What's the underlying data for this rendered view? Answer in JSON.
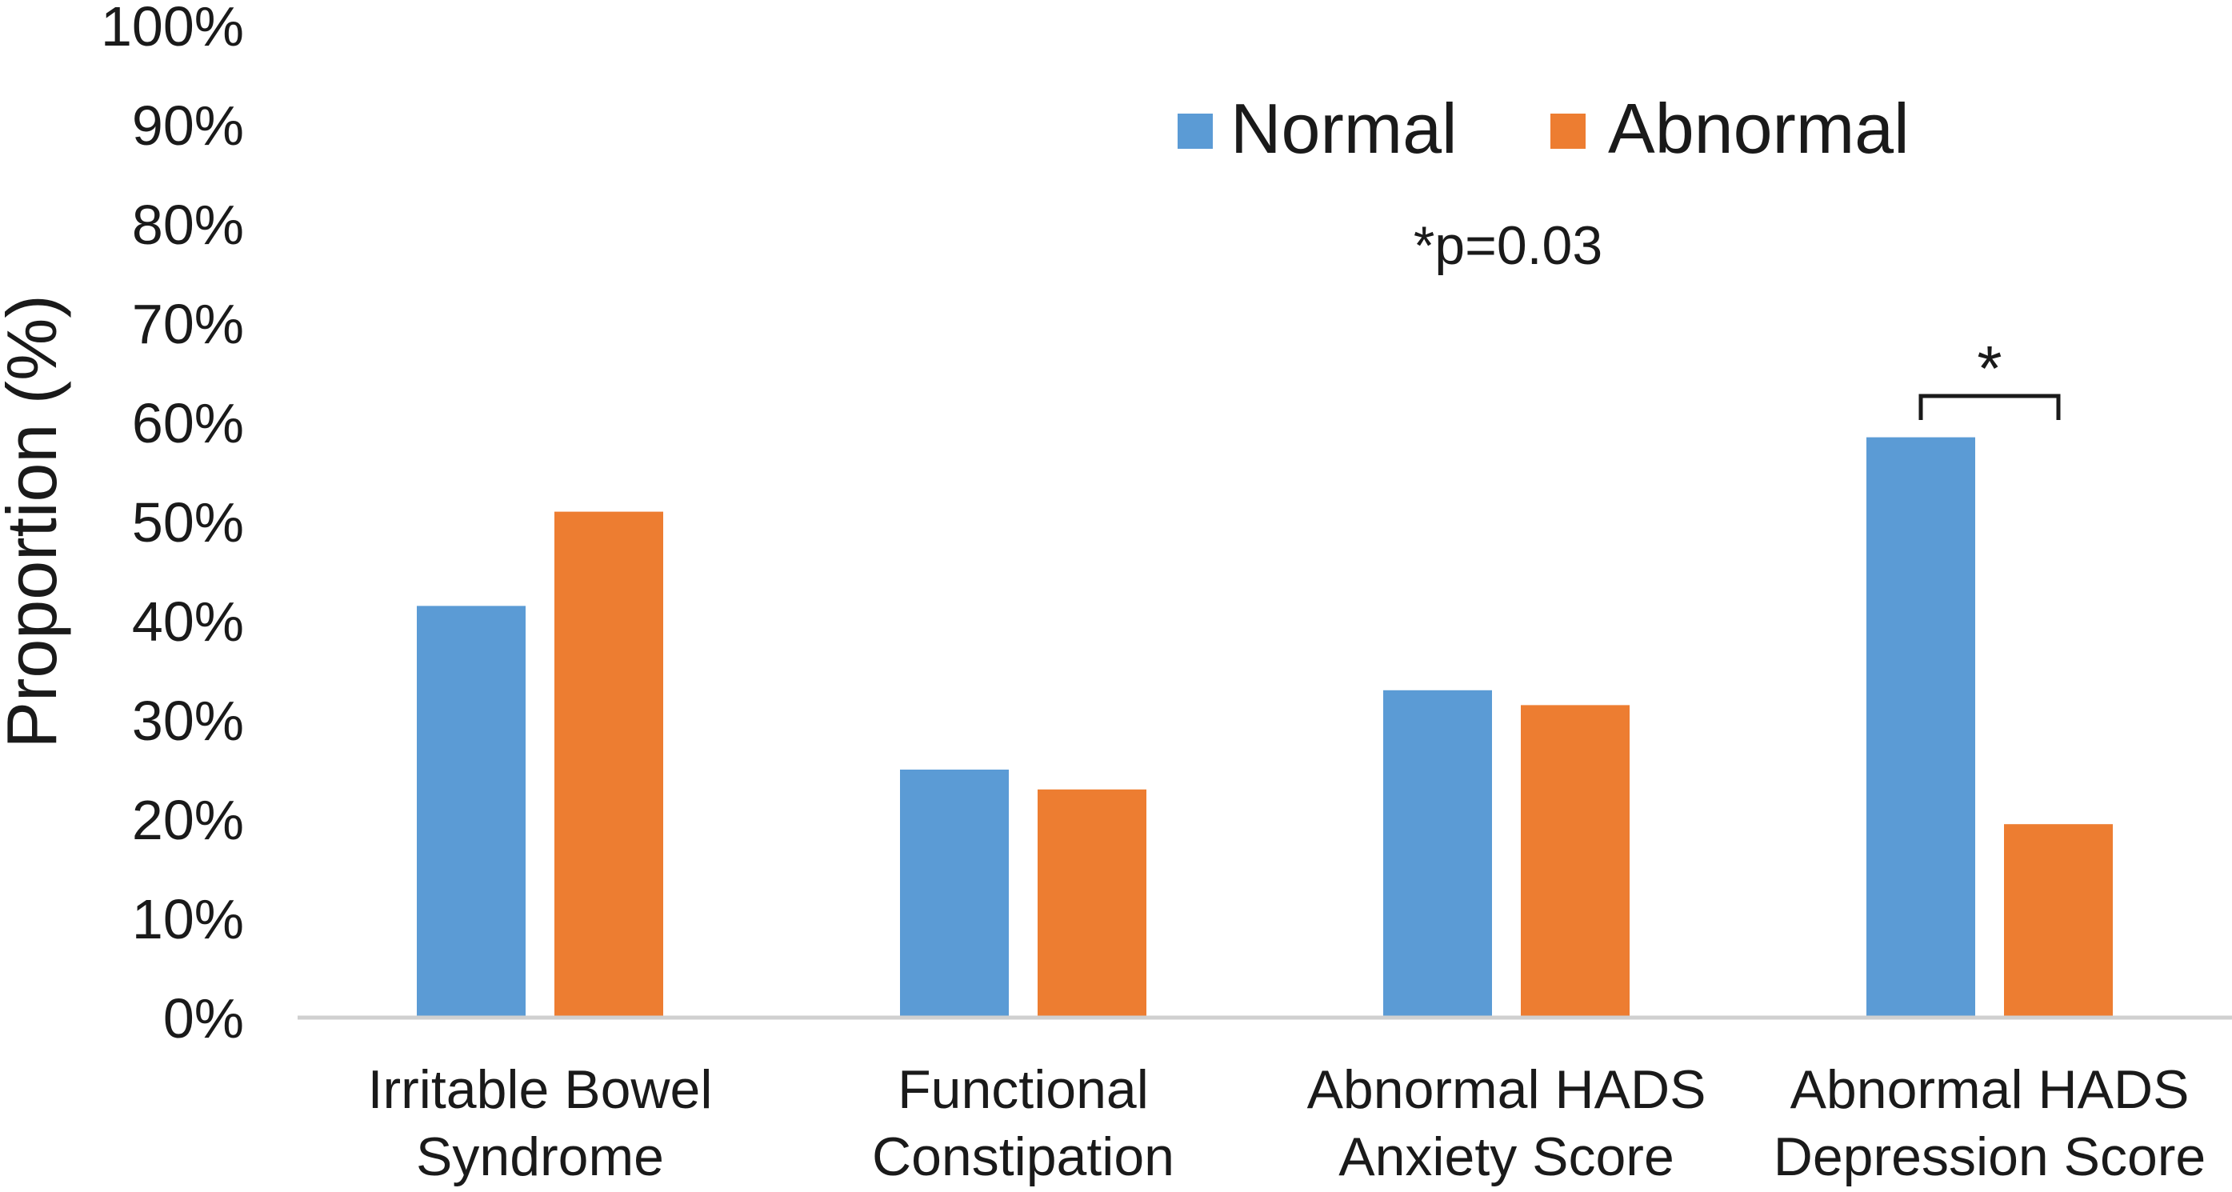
{
  "chart_data": {
    "type": "bar",
    "title": "",
    "xlabel": "",
    "ylabel": "Proportion (%)",
    "ylim": [
      0,
      100
    ],
    "y_ticks": [
      "0%",
      "10%",
      "20%",
      "30%",
      "40%",
      "50%",
      "60%",
      "70%",
      "80%",
      "90%",
      "100%"
    ],
    "categories": [
      [
        "Irritable Bowel",
        "Syndrome"
      ],
      [
        "Functional",
        "Constipation"
      ],
      [
        "Abnormal HADS",
        "Anxiety Score"
      ],
      [
        "Abnormal HADS",
        "Depression Score"
      ]
    ],
    "series": [
      {
        "name": "Normal",
        "color": "#5b9bd5",
        "values": [
          41.5,
          25,
          33,
          58.5
        ]
      },
      {
        "name": "Abnormal",
        "color": "#ed7d31",
        "values": [
          51,
          23,
          31.5,
          19.5
        ]
      }
    ],
    "legend_position": "top-center",
    "grid": false,
    "annotations": {
      "p_value": "*p=0.03",
      "significance": {
        "category_index": 3,
        "symbol": "*"
      }
    }
  }
}
